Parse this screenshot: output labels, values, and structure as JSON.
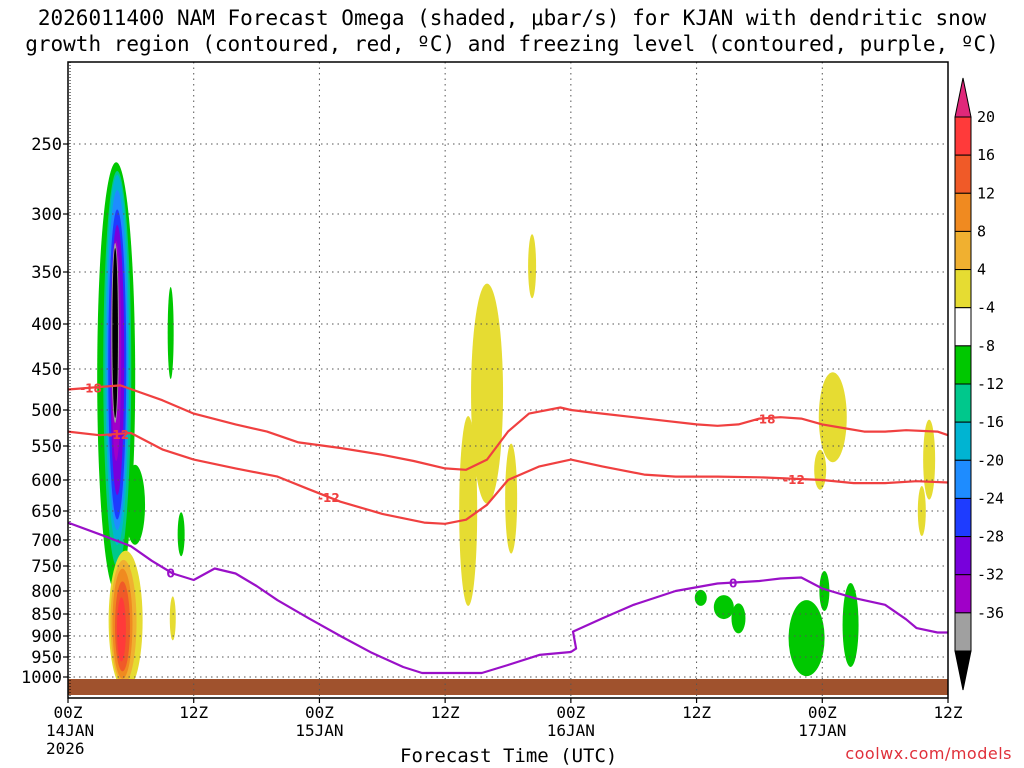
{
  "title": {
    "line1": "2026011400 NAM Forecast Omega (shaded, μbar/s) for KJAN with dendritic snow",
    "line2": "growth region (contoured, red, ºC) and freezing level (contoured, purple, ºC)"
  },
  "credit": "coolwx.com/models",
  "chart_data": {
    "type": "heatmap",
    "xlabel": "Forecast Time (UTC)",
    "ylabel": "",
    "x_range_hours": [
      0,
      84
    ],
    "y_range_mb": [
      1040,
      205
    ],
    "x_ticks": [
      {
        "hour": 0,
        "lines": [
          "00Z",
          "14JAN",
          "2026"
        ]
      },
      {
        "hour": 12,
        "lines": [
          "12Z"
        ]
      },
      {
        "hour": 24,
        "lines": [
          "00Z",
          "15JAN"
        ]
      },
      {
        "hour": 36,
        "lines": [
          "12Z"
        ]
      },
      {
        "hour": 48,
        "lines": [
          "00Z",
          "16JAN"
        ]
      },
      {
        "hour": 60,
        "lines": [
          "12Z"
        ]
      },
      {
        "hour": 72,
        "lines": [
          "00Z",
          "17JAN"
        ]
      },
      {
        "hour": 84,
        "lines": [
          "12Z"
        ]
      }
    ],
    "y_ticks": [
      "250",
      "300",
      "350",
      "400",
      "450",
      "500",
      "550",
      "600",
      "650",
      "700",
      "750",
      "800",
      "850",
      "900",
      "950",
      "1000"
    ],
    "grid": true,
    "colorbar": {
      "labels": [
        "20",
        "16",
        "12",
        "8",
        "4",
        "-4",
        "-8",
        "-12",
        "-16",
        "-20",
        "-24",
        "-28",
        "-32",
        "-36"
      ],
      "colors": [
        "#ff3a3a",
        "#f05a28",
        "#f08a20",
        "#f0b030",
        "#e6dc32",
        "#ffffff",
        "#00c800",
        "#00c88c",
        "#00b4d2",
        "#1e8cff",
        "#1e3cff",
        "#7800dc",
        "#a000c8",
        "#a0a0a0"
      ],
      "top_arrow_color": "#e0287a",
      "bottom_arrow_color": "#000000"
    },
    "contours": [
      {
        "name": "-18",
        "color": "#f04040",
        "label_hours": [
          2.2,
          66.5
        ],
        "points": [
          [
            0,
            475
          ],
          [
            3,
            472
          ],
          [
            5,
            470
          ],
          [
            9,
            488
          ],
          [
            12,
            505
          ],
          [
            16,
            520
          ],
          [
            19,
            530
          ],
          [
            22,
            545
          ],
          [
            26,
            553
          ],
          [
            30,
            563
          ],
          [
            33,
            572
          ],
          [
            36,
            583
          ],
          [
            38,
            585
          ],
          [
            40,
            570
          ],
          [
            42,
            530
          ],
          [
            44,
            505
          ],
          [
            47,
            497
          ],
          [
            48,
            500
          ],
          [
            51,
            505
          ],
          [
            54,
            510
          ],
          [
            57,
            515
          ],
          [
            60,
            520
          ],
          [
            62,
            522
          ],
          [
            64,
            520
          ],
          [
            66,
            512
          ],
          [
            68,
            510
          ],
          [
            70,
            512
          ],
          [
            72,
            520
          ],
          [
            74,
            525
          ],
          [
            76,
            530
          ],
          [
            78,
            530
          ],
          [
            80,
            528
          ],
          [
            83,
            530
          ],
          [
            84,
            535
          ]
        ]
      },
      {
        "name": "-12",
        "color": "#f04040",
        "label_hours": [
          4.8,
          24.9,
          69.3
        ],
        "points": [
          [
            0,
            530
          ],
          [
            3,
            535
          ],
          [
            6,
            532
          ],
          [
            9,
            555
          ],
          [
            12,
            570
          ],
          [
            16,
            583
          ],
          [
            20,
            595
          ],
          [
            23,
            615
          ],
          [
            26,
            635
          ],
          [
            30,
            655
          ],
          [
            34,
            670
          ],
          [
            36,
            672
          ],
          [
            38,
            665
          ],
          [
            40,
            640
          ],
          [
            42,
            600
          ],
          [
            45,
            580
          ],
          [
            48,
            570
          ],
          [
            51,
            580
          ],
          [
            55,
            592
          ],
          [
            58,
            595
          ],
          [
            62,
            595
          ],
          [
            66,
            596
          ],
          [
            69,
            598
          ],
          [
            72,
            600
          ],
          [
            75,
            605
          ],
          [
            78,
            605
          ],
          [
            81,
            602
          ],
          [
            84,
            604
          ]
        ]
      },
      {
        "name": "0",
        "color": "#9a10c8",
        "label_hours": [
          9.8,
          63.5
        ],
        "points": [
          [
            0,
            670
          ],
          [
            3,
            690
          ],
          [
            6,
            712
          ],
          [
            8,
            740
          ],
          [
            10,
            765
          ],
          [
            12,
            778
          ],
          [
            14,
            755
          ],
          [
            16,
            765
          ],
          [
            18,
            790
          ],
          [
            20,
            820
          ],
          [
            23,
            860
          ],
          [
            26,
            900
          ],
          [
            29,
            940
          ],
          [
            32,
            975
          ],
          [
            33.8,
            990
          ],
          [
            39.5,
            990
          ],
          [
            42,
            970
          ],
          [
            45,
            945
          ],
          [
            48,
            938
          ],
          [
            48.5,
            930
          ],
          [
            48.2,
            890
          ],
          [
            51,
            860
          ],
          [
            54,
            830
          ],
          [
            58,
            800
          ],
          [
            62,
            785
          ],
          [
            66,
            780
          ],
          [
            68,
            775
          ],
          [
            70,
            773
          ],
          [
            72,
            795
          ],
          [
            75,
            815
          ],
          [
            78,
            830
          ],
          [
            80,
            862
          ],
          [
            81,
            882
          ],
          [
            83,
            892
          ],
          [
            84,
            892
          ]
        ]
      }
    ],
    "omega_areas": [
      {
        "value": "-4",
        "color": "#00c800"
      },
      {
        "value": "-8",
        "color": "#00c88c"
      },
      {
        "value": "-12",
        "color": "#00b4d2"
      },
      {
        "value": "-16",
        "color": "#1e8cff"
      },
      {
        "value": "-20",
        "color": "#1e3cff"
      },
      {
        "value": "-24",
        "color": "#7800dc"
      },
      {
        "value": "-28",
        "color": "#a000c8"
      },
      {
        "value": "-32",
        "color": "#a0a0a0"
      },
      {
        "value": "-36",
        "color": "#000000"
      },
      {
        "value": "4",
        "color": "#e6dc32"
      },
      {
        "value": "8",
        "color": "#f0b030"
      },
      {
        "value": "12",
        "color": "#f08a20"
      },
      {
        "value": "16",
        "color": "#f05a28"
      },
      {
        "value": "20",
        "color": "#ff3a3a"
      }
    ],
    "terrain_color": "#a0522d",
    "contour_colors": {
      "dgz": "#f04040",
      "freezing": "#9a10c8"
    }
  }
}
